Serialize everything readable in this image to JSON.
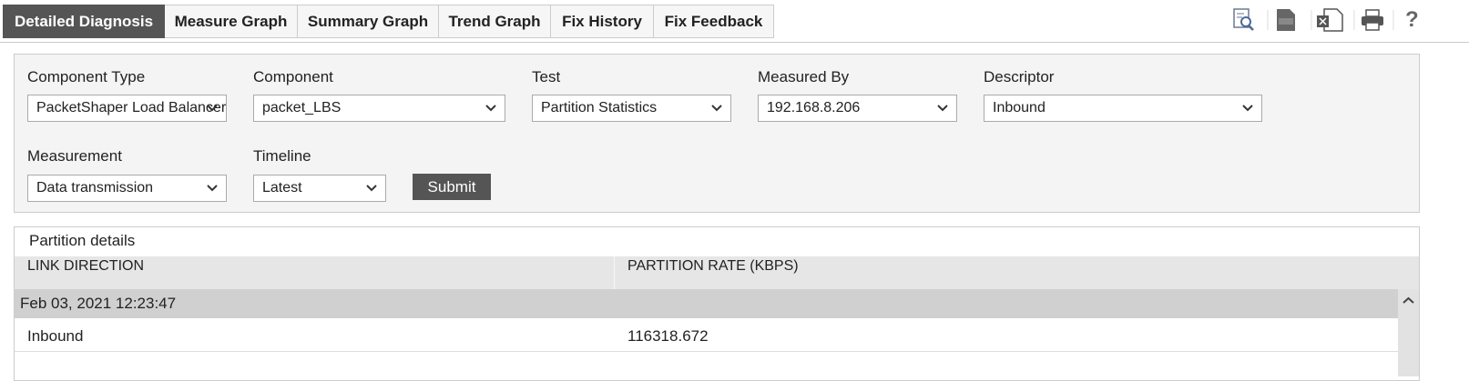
{
  "tabs": [
    "Detailed Diagnosis",
    "Measure Graph",
    "Summary Graph",
    "Trend Graph",
    "Fix History",
    "Fix Feedback"
  ],
  "help": "?",
  "filters": [
    {
      "label": "Component Type",
      "value": "PacketShaper Load Balancer"
    },
    {
      "label": "Component",
      "value": "packet_LBS"
    },
    {
      "label": "Test",
      "value": "Partition Statistics"
    },
    {
      "label": "Measured By",
      "value": "192.168.8.206"
    },
    {
      "label": "Descriptor",
      "value": "Inbound"
    },
    {
      "label": "Measurement",
      "value": "Data transmission"
    },
    {
      "label": "Timeline",
      "value": "Latest"
    }
  ],
  "submit": "Submit",
  "table": {
    "title": "Partition details",
    "columns": [
      "LINK DIRECTION",
      "PARTITION RATE (KBPS)"
    ],
    "group": "Feb 03, 2021 12:23:47",
    "rows": [
      [
        "Inbound",
        "116318.672"
      ]
    ]
  }
}
